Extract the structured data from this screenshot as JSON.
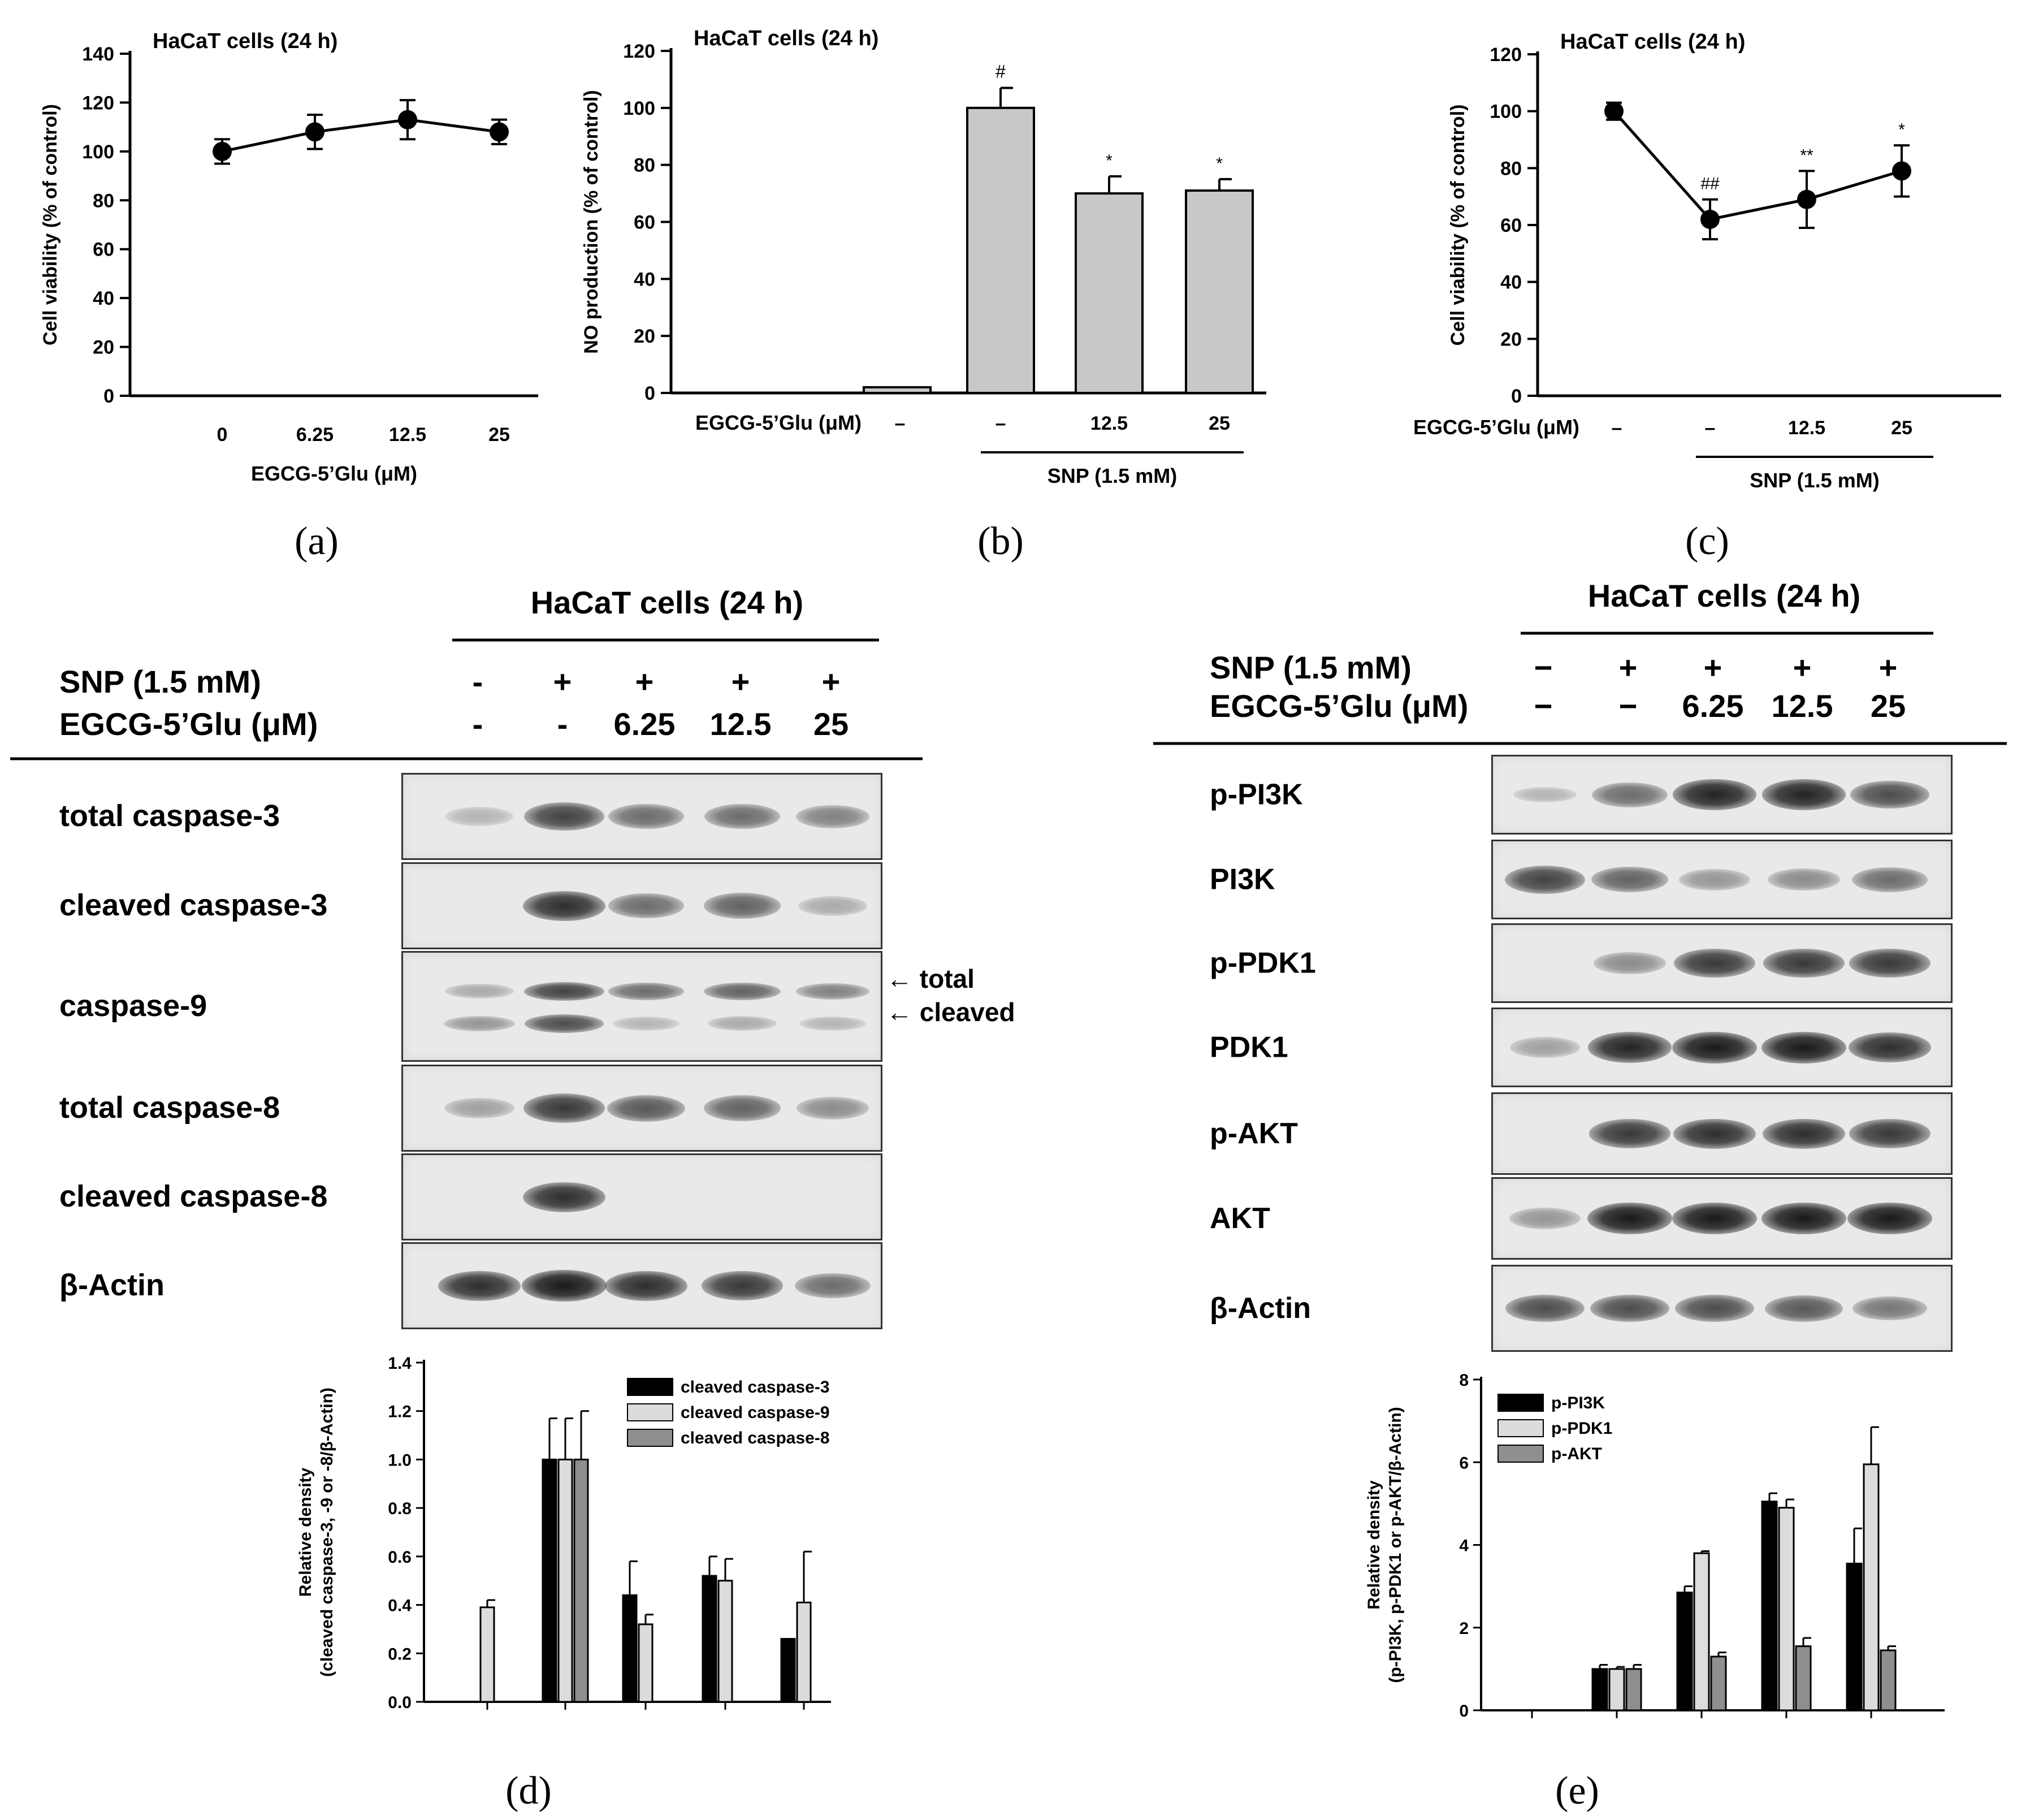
{
  "chart_data": [
    {
      "panel": "a",
      "panel_label": "(a)",
      "type": "line",
      "title": "HaCaT cells (24 h)",
      "ylabel": "Cell viability (% of control)",
      "xlabel": "EGCG-5’Glu (μM)",
      "categories": [
        "0",
        "6.25",
        "12.5",
        "25"
      ],
      "values": [
        100,
        108,
        113,
        108
      ],
      "errors": [
        5,
        7,
        8,
        5
      ],
      "ylim": [
        0,
        140
      ],
      "yticks": [
        0,
        20,
        40,
        60,
        80,
        100,
        120,
        140
      ],
      "annotations": [
        "",
        "",
        "",
        ""
      ]
    },
    {
      "panel": "b",
      "panel_label": "(b)",
      "type": "bar",
      "title": "HaCaT cells (24 h)",
      "ylabel": "NO production (% of control)",
      "row_label": "EGCG-5’Glu (μM)",
      "categories": [
        "–",
        "–",
        "12.5",
        "25"
      ],
      "values": [
        2,
        100,
        70,
        71
      ],
      "errors": [
        0.5,
        7,
        6,
        4
      ],
      "ylim": [
        0,
        120
      ],
      "yticks": [
        0,
        20,
        40,
        60,
        80,
        100,
        120
      ],
      "annotations": [
        "",
        "#",
        "*",
        "*"
      ],
      "group_label": "SNP (1.5 mM)"
    },
    {
      "panel": "c",
      "panel_label": "(c)",
      "type": "line",
      "title": "HaCaT cells (24 h)",
      "ylabel": "Cell viability (% of control)",
      "row_label": "EGCG-5’Glu (μM)",
      "categories": [
        "–",
        "–",
        "12.5",
        "25"
      ],
      "values": [
        100,
        62,
        69,
        79
      ],
      "errors": [
        3,
        7,
        10,
        9
      ],
      "ylim": [
        0,
        120
      ],
      "yticks": [
        0,
        20,
        40,
        60,
        80,
        100,
        120
      ],
      "annotations": [
        "",
        "##",
        "**",
        "*"
      ],
      "group_label": "SNP (1.5 mM)"
    },
    {
      "panel": "d",
      "panel_label": "(d)",
      "type": "bar",
      "ylabel_line1": "Relative density",
      "ylabel_line2": "(cleaved caspase-3, -9 or -8/β-Actin)",
      "ylim": [
        0,
        1.4
      ],
      "yticks": [
        "0.0",
        "0.2",
        "0.4",
        "0.6",
        "0.8",
        "1.0",
        "1.2",
        "1.4"
      ],
      "ntick": 5,
      "series": [
        {
          "name": "cleaved caspase-3",
          "color": "#000000",
          "values": [
            null,
            1.0,
            0.44,
            0.52,
            0.26
          ],
          "errors": [
            null,
            0.17,
            0.14,
            0.08,
            0.0
          ]
        },
        {
          "name": "cleaved caspase-9",
          "color": "#dcdcdc",
          "values": [
            0.39,
            1.0,
            0.32,
            0.5,
            0.41
          ],
          "errors": [
            0.03,
            0.17,
            0.04,
            0.09,
            0.21
          ]
        },
        {
          "name": "cleaved caspase-8",
          "color": "#8f8f8f",
          "values": [
            null,
            1.0,
            null,
            null,
            null
          ],
          "errors": [
            null,
            0.2,
            null,
            null,
            null
          ]
        }
      ]
    },
    {
      "panel": "e",
      "panel_label": "(e)",
      "type": "bar",
      "ylabel_line1": "Relative density",
      "ylabel_line2": "(p-PI3K, p-PDK1 or p-AKT/β-Actin)",
      "ylim": [
        0,
        8
      ],
      "yticks": [
        "0",
        "2",
        "4",
        "6",
        "8"
      ],
      "ntick": 5,
      "series": [
        {
          "name": "p-PI3K",
          "color": "#000000",
          "values": [
            null,
            1.0,
            2.85,
            5.05,
            3.55
          ],
          "errors": [
            null,
            0.1,
            0.15,
            0.2,
            0.85
          ]
        },
        {
          "name": "p-PDK1",
          "color": "#dcdcdc",
          "values": [
            null,
            1.0,
            3.8,
            4.9,
            5.95
          ],
          "errors": [
            null,
            0.05,
            0.05,
            0.2,
            0.9
          ]
        },
        {
          "name": "p-AKT",
          "color": "#8f8f8f",
          "values": [
            null,
            1.0,
            1.3,
            1.55,
            1.45
          ],
          "errors": [
            null,
            0.1,
            0.1,
            0.2,
            0.1
          ]
        }
      ]
    }
  ],
  "blots": [
    {
      "panel": "d",
      "title": "HaCaT cells (24 h)",
      "snp_label": "SNP (1.5 mM)",
      "egcg_label": "EGCG-5’Glu (μM)",
      "snp": [
        "-",
        "+",
        "+",
        "+",
        "+"
      ],
      "egcg": [
        "-",
        "-",
        "6.25",
        "12.5",
        "25"
      ],
      "rows": [
        {
          "label": "total caspase-3",
          "bands": [
            [
              0.25
            ],
            [
              0.8
            ],
            [
              0.6
            ],
            [
              0.6
            ],
            [
              0.5
            ]
          ]
        },
        {
          "label": "cleaved caspase-3",
          "bands": [
            [
              0
            ],
            [
              0.9
            ],
            [
              0.6
            ],
            [
              0.65
            ],
            [
              0.3
            ]
          ]
        },
        {
          "label": "caspase-9",
          "bands": [
            [
              0.3,
              0.4
            ],
            [
              0.8,
              0.75
            ],
            [
              0.6,
              0.2
            ],
            [
              0.65,
              0.3
            ],
            [
              0.5,
              0.2
            ]
          ]
        },
        {
          "label": "total caspase-8",
          "bands": [
            [
              0.35
            ],
            [
              0.85
            ],
            [
              0.7
            ],
            [
              0.65
            ],
            [
              0.45
            ]
          ]
        },
        {
          "label": "cleaved caspase-8",
          "bands": [
            [
              0
            ],
            [
              0.9
            ],
            [
              0
            ],
            [
              0
            ],
            [
              0
            ]
          ]
        },
        {
          "label": "β-Actin",
          "bands": [
            [
              0.9
            ],
            [
              1.0
            ],
            [
              0.9
            ],
            [
              0.85
            ],
            [
              0.6
            ]
          ]
        }
      ],
      "arrows": [
        "← total",
        "← cleaved"
      ]
    },
    {
      "panel": "e",
      "title": "HaCaT cells (24 h)",
      "snp_label": "SNP (1.5 mM)",
      "egcg_label": "EGCG-5’Glu (μM)",
      "snp": [
        "−",
        "+",
        "+",
        "+",
        "+"
      ],
      "egcg": [
        "−",
        "−",
        "6.25",
        "12.5",
        "25"
      ],
      "rows": [
        {
          "label": "p-PI3K",
          "bands": [
            [
              0.05
            ],
            [
              0.6
            ],
            [
              0.95
            ],
            [
              0.95
            ],
            [
              0.75
            ]
          ]
        },
        {
          "label": "PI3K",
          "bands": [
            [
              0.8
            ],
            [
              0.65
            ],
            [
              0.4
            ],
            [
              0.45
            ],
            [
              0.6
            ]
          ]
        },
        {
          "label": "p-PDK1",
          "bands": [
            [
              0
            ],
            [
              0.45
            ],
            [
              0.85
            ],
            [
              0.85
            ],
            [
              0.85
            ]
          ]
        },
        {
          "label": "PDK1",
          "bands": [
            [
              0.35
            ],
            [
              0.95
            ],
            [
              1.0
            ],
            [
              1.0
            ],
            [
              0.9
            ]
          ]
        },
        {
          "label": "p-AKT",
          "bands": [
            [
              0
            ],
            [
              0.85
            ],
            [
              0.9
            ],
            [
              0.9
            ],
            [
              0.85
            ]
          ]
        },
        {
          "label": "AKT",
          "bands": [
            [
              0.4
            ],
            [
              1.0
            ],
            [
              1.0
            ],
            [
              1.0
            ],
            [
              1.0
            ]
          ]
        },
        {
          "label": "β-Actin",
          "bands": [
            [
              0.75
            ],
            [
              0.75
            ],
            [
              0.75
            ],
            [
              0.7
            ],
            [
              0.55
            ]
          ]
        }
      ]
    }
  ]
}
